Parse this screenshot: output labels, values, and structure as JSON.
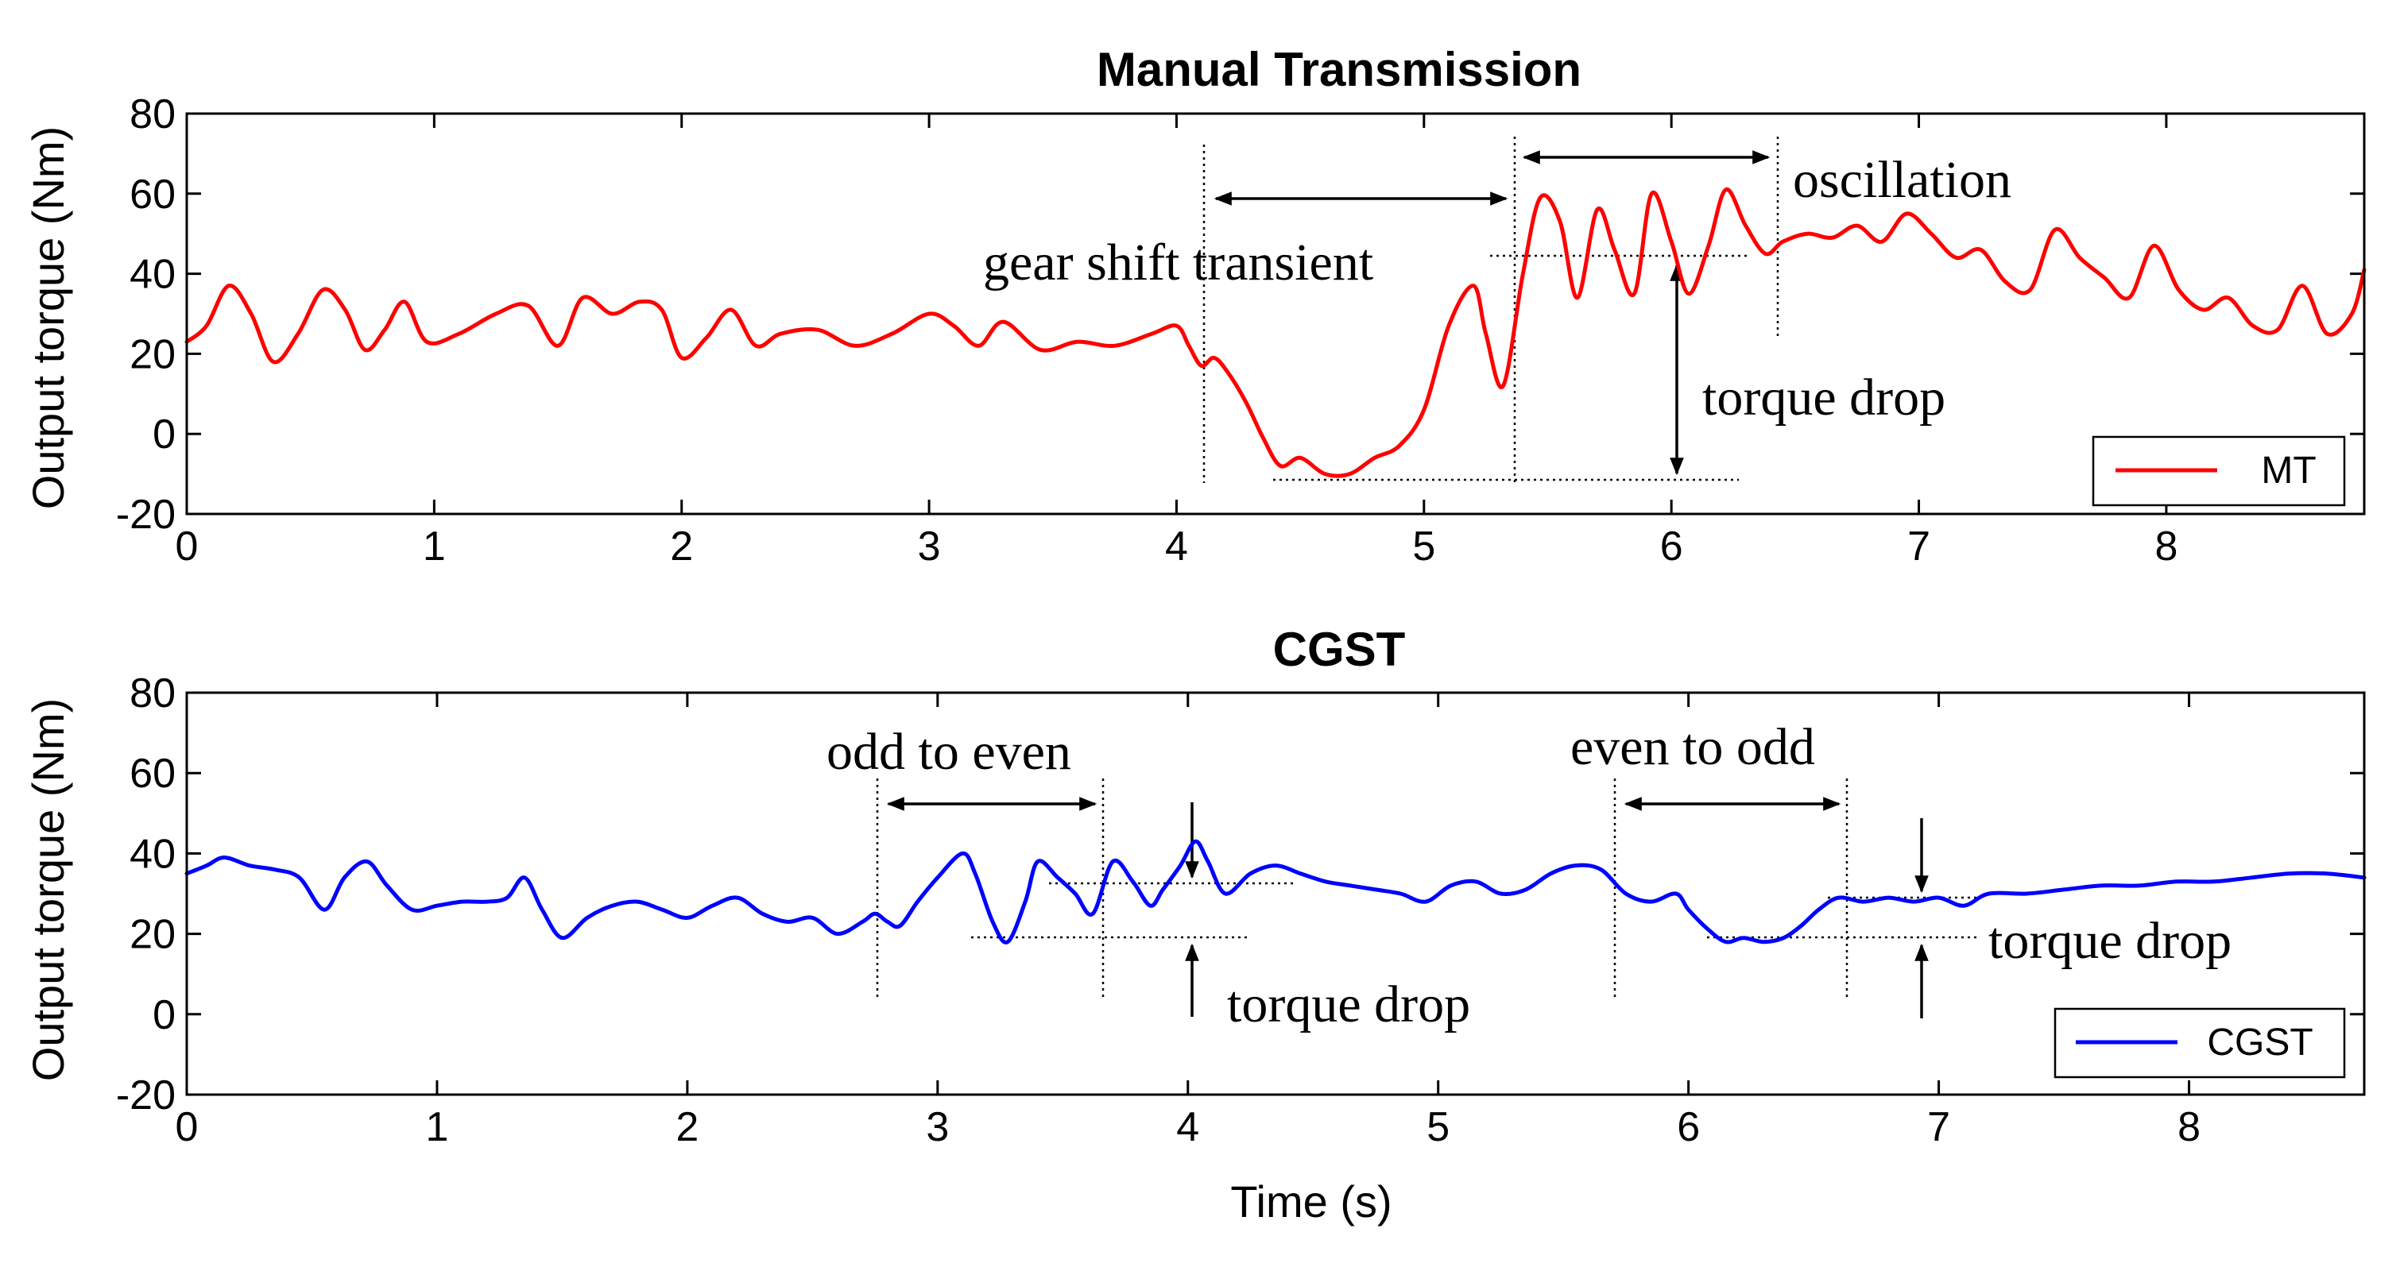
{
  "chart_data": [
    {
      "type": "line",
      "title": "Manual Transmission",
      "xlabel": "",
      "ylabel": "Output torque (Nm)",
      "xlim": [
        0,
        8.8
      ],
      "ylim": [
        -20,
        80
      ],
      "xticks": [
        "0",
        "1",
        "2",
        "3",
        "4",
        "5",
        "6",
        "7",
        "8"
      ],
      "yticks": [
        "-20",
        "0",
        "20",
        "40",
        "60",
        "80"
      ],
      "legend": {
        "position": "bottom-right",
        "entries": [
          "MT"
        ]
      },
      "series": [
        {
          "name": "MT",
          "color": "#ff0000",
          "x": [
            0,
            0.08,
            0.17,
            0.26,
            0.35,
            0.45,
            0.55,
            0.64,
            0.72,
            0.8,
            0.88,
            0.97,
            1.1,
            1.25,
            1.38,
            1.5,
            1.6,
            1.72,
            1.83,
            1.92,
            2.0,
            2.1,
            2.2,
            2.3,
            2.4,
            2.55,
            2.7,
            2.85,
            3.0,
            3.1,
            3.2,
            3.3,
            3.45,
            3.6,
            3.75,
            3.9,
            4.0,
            4.05,
            4.1,
            4.15,
            4.2,
            4.28,
            4.35,
            4.42,
            4.5,
            4.6,
            4.7,
            4.8,
            4.9,
            5.0,
            5.1,
            5.2,
            5.25,
            5.32,
            5.4,
            5.47,
            5.55,
            5.62,
            5.7,
            5.77,
            5.85,
            5.92,
            6.0,
            6.07,
            6.15,
            6.22,
            6.3,
            6.38,
            6.45,
            6.55,
            6.65,
            6.75,
            6.85,
            6.95,
            7.05,
            7.15,
            7.25,
            7.35,
            7.45,
            7.55,
            7.65,
            7.75,
            7.85,
            7.95,
            8.05,
            8.15,
            8.25,
            8.35,
            8.45,
            8.55,
            8.65,
            8.75,
            8.8
          ],
          "y": [
            23,
            27,
            37,
            30,
            18,
            25,
            36,
            31,
            21,
            26,
            33,
            23,
            25,
            30,
            32,
            22,
            34,
            30,
            33,
            31,
            19,
            24,
            31,
            22,
            25,
            26,
            22,
            25,
            30,
            27,
            22,
            28,
            21,
            23,
            22,
            25,
            27,
            22,
            17,
            19,
            16,
            8,
            -1,
            -8,
            -6,
            -10,
            -10,
            -6,
            -3,
            6,
            27,
            37,
            25,
            12,
            40,
            59,
            53,
            34,
            56,
            46,
            35,
            60,
            48,
            35,
            47,
            61,
            52,
            45,
            48,
            50,
            49,
            52,
            48,
            55,
            50,
            44,
            46,
            38,
            36,
            51,
            44,
            39,
            34,
            47,
            36,
            31,
            34,
            27,
            26,
            37,
            25,
            30,
            41
          ]
        }
      ],
      "annotations": [
        {
          "text": "gear shift transient"
        },
        {
          "text": "oscillation"
        },
        {
          "text": "torque drop"
        }
      ]
    },
    {
      "type": "line",
      "title": "CGST",
      "xlabel": "Time (s)",
      "ylabel": "Output torque (Nm)",
      "xlim": [
        0,
        8.7
      ],
      "ylim": [
        -20,
        80
      ],
      "xticks": [
        "0",
        "1",
        "2",
        "3",
        "4",
        "5",
        "6",
        "7",
        "8"
      ],
      "yticks": [
        "-20",
        "0",
        "20",
        "40",
        "60",
        "80"
      ],
      "legend": {
        "position": "bottom-right",
        "entries": [
          "CGST"
        ]
      },
      "series": [
        {
          "name": "CGST",
          "color": "#0000ff",
          "x": [
            0,
            0.08,
            0.15,
            0.25,
            0.35,
            0.45,
            0.55,
            0.63,
            0.72,
            0.8,
            0.9,
            1.0,
            1.1,
            1.2,
            1.28,
            1.35,
            1.42,
            1.5,
            1.6,
            1.7,
            1.8,
            1.9,
            2.0,
            2.1,
            2.2,
            2.3,
            2.4,
            2.5,
            2.6,
            2.7,
            2.75,
            2.8,
            2.85,
            2.92,
            3.0,
            3.1,
            3.15,
            3.22,
            3.28,
            3.35,
            3.4,
            3.48,
            3.55,
            3.62,
            3.7,
            3.78,
            3.85,
            3.9,
            3.97,
            4.03,
            4.08,
            4.15,
            4.25,
            4.35,
            4.45,
            4.55,
            4.65,
            4.75,
            4.85,
            4.95,
            5.05,
            5.15,
            5.25,
            5.35,
            5.45,
            5.55,
            5.65,
            5.75,
            5.85,
            5.95,
            6.0,
            6.08,
            6.15,
            6.22,
            6.3,
            6.38,
            6.45,
            6.52,
            6.6,
            6.7,
            6.8,
            6.9,
            7.0,
            7.1,
            7.2,
            7.35,
            7.5,
            7.65,
            7.8,
            7.95,
            8.1,
            8.25,
            8.4,
            8.55,
            8.7
          ],
          "y": [
            35,
            37,
            39,
            37,
            36,
            34,
            26,
            34,
            38,
            32,
            26,
            27,
            28,
            28,
            29,
            34,
            26,
            19,
            24,
            27,
            28,
            26,
            24,
            27,
            29,
            25,
            23,
            24,
            20,
            23,
            25,
            23,
            22,
            28,
            34,
            40,
            35,
            23,
            18,
            28,
            38,
            34,
            30,
            25,
            38,
            33,
            27,
            31,
            37,
            43,
            38,
            30,
            35,
            37,
            35,
            33,
            32,
            31,
            30,
            28,
            32,
            33,
            30,
            31,
            35,
            37,
            36,
            30,
            28,
            30,
            26,
            21,
            18,
            19,
            18,
            19,
            22,
            26,
            29,
            28,
            29,
            28,
            29,
            27,
            30,
            30,
            31,
            32,
            32,
            33,
            33,
            34,
            35,
            35,
            34
          ]
        }
      ],
      "annotations": [
        {
          "text": "odd to even"
        },
        {
          "text": "even to odd"
        },
        {
          "text": "torque drop"
        },
        {
          "text": "torque drop"
        }
      ]
    }
  ]
}
